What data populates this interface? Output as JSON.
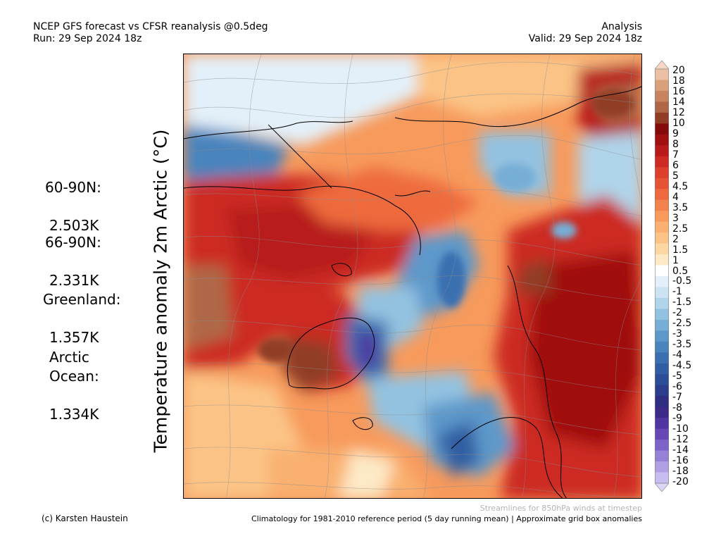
{
  "header": {
    "title_line1": "NCEP GFS forecast vs CFSR reanalysis @0.5deg",
    "title_line2": "Run: 29 Sep 2024 18z",
    "right_line1": "Analysis",
    "right_line2": "Valid: 29 Sep 2024 18z"
  },
  "y_label": "Temperature anomaly 2m Arctic (°C)",
  "stats": {
    "n60": {
      "label": "60-90N:",
      "value": "2.503K"
    },
    "n66": {
      "label": "66-90N:",
      "value": "2.331K"
    },
    "greenland": {
      "label": "Greenland:",
      "value": "1.357K"
    },
    "arctic": {
      "label": "Arctic\nOcean:",
      "value": "1.334K"
    }
  },
  "colorbar": {
    "levels": [
      {
        "label": "20",
        "color": "#f7d7c4"
      },
      {
        "label": "18",
        "color": "#ebc0a5"
      },
      {
        "label": "16",
        "color": "#d9a07c"
      },
      {
        "label": "14",
        "color": "#c7845f"
      },
      {
        "label": "12",
        "color": "#af6747"
      },
      {
        "label": "10",
        "color": "#913d25"
      },
      {
        "label": "9",
        "color": "#850a0a"
      },
      {
        "label": "8",
        "color": "#a01010"
      },
      {
        "label": "7",
        "color": "#b81a1a"
      },
      {
        "label": "6",
        "color": "#cc2a22"
      },
      {
        "label": "5",
        "color": "#dc3f2c"
      },
      {
        "label": "4.5",
        "color": "#e65235"
      },
      {
        "label": "4",
        "color": "#ee6a3e"
      },
      {
        "label": "3.5",
        "color": "#f3834c"
      },
      {
        "label": "3",
        "color": "#f79a5c"
      },
      {
        "label": "2.5",
        "color": "#f9b070"
      },
      {
        "label": "2",
        "color": "#fbc486"
      },
      {
        "label": "1.5",
        "color": "#fcd7a2"
      },
      {
        "label": "1",
        "color": "#fde9c6"
      },
      {
        "label": "0.5",
        "color": "#ffffff"
      },
      {
        "label": "-0.5",
        "color": "#e3f0f9"
      },
      {
        "label": "-1",
        "color": "#cbe3f2"
      },
      {
        "label": "-1.5",
        "color": "#b0d4ea"
      },
      {
        "label": "-2",
        "color": "#93c2e1"
      },
      {
        "label": "-2.5",
        "color": "#77aed6"
      },
      {
        "label": "-3",
        "color": "#5d98ca"
      },
      {
        "label": "-3.5",
        "color": "#4984bd"
      },
      {
        "label": "-4",
        "color": "#3b70b0"
      },
      {
        "label": "-4.5",
        "color": "#315ea3"
      },
      {
        "label": "-5",
        "color": "#2b4d96"
      },
      {
        "label": "-6",
        "color": "#2b3d8b"
      },
      {
        "label": "-7",
        "color": "#302e80"
      },
      {
        "label": "-8",
        "color": "#3d2a88"
      },
      {
        "label": "-9",
        "color": "#5035a0"
      },
      {
        "label": "-10",
        "color": "#6548b5"
      },
      {
        "label": "-12",
        "color": "#7e63c8"
      },
      {
        "label": "-14",
        "color": "#9781d6"
      },
      {
        "label": "-16",
        "color": "#b0a0e3"
      },
      {
        "label": "-18",
        "color": "#c8bdee"
      },
      {
        "label": "-20",
        "color": "#ddd5f7"
      }
    ]
  },
  "footer": {
    "streamlines_note": "Streamlines for 850hPa winds at timestep",
    "credit": "(c) Karsten Haustein",
    "climatology": "Climatology for 1981-2010 reference period (5 day running mean) | Approximate grid box anomalies"
  }
}
